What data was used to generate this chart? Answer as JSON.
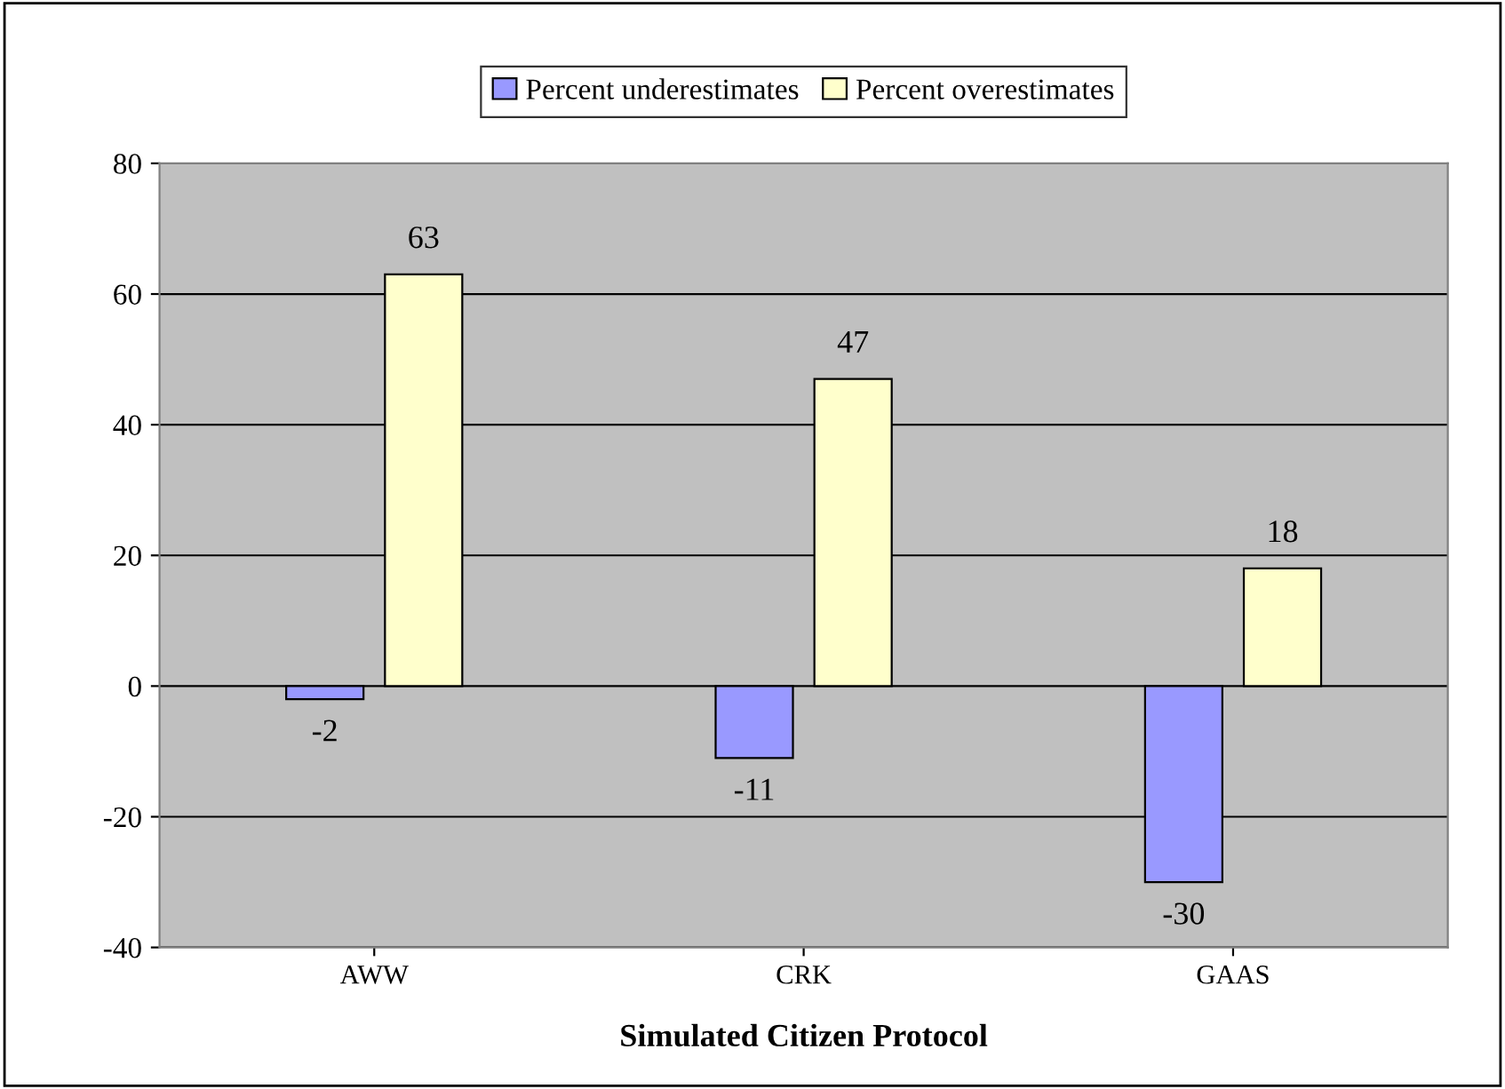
{
  "chart_data": {
    "type": "bar",
    "xlabel": "Simulated Citizen Protocol",
    "categories": [
      "AWW",
      "CRK",
      "GAAS"
    ],
    "series": [
      {
        "name": "Percent underestimates",
        "color": "#9999ff",
        "values": [
          -2,
          -11,
          -30
        ]
      },
      {
        "name": "Percent overestimates",
        "color": "#ffffcc",
        "values": [
          63,
          47,
          18
        ]
      }
    ],
    "ylim": [
      -40,
      80
    ],
    "yticks": [
      -40,
      -20,
      0,
      20,
      40,
      60,
      80
    ],
    "grid": "y",
    "legend": "top",
    "data_labels": true
  }
}
